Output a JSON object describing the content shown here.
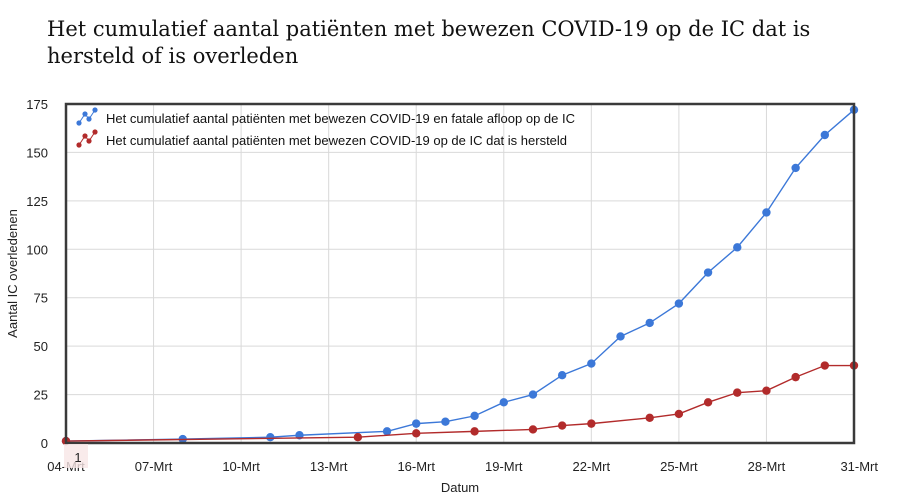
{
  "page": {
    "title": "Het cumulatief aantal patiënten met bewezen COVID-19 op de IC dat is hersteld of is overleden"
  },
  "chart_data": {
    "type": "line",
    "title": "",
    "xlabel": "Datum",
    "ylabel": "Aantal IC overledenen",
    "x_categories": [
      "04-Mrt",
      "05-Mrt",
      "06-Mrt",
      "07-Mrt",
      "08-Mrt",
      "09-Mrt",
      "10-Mrt",
      "11-Mrt",
      "12-Mrt",
      "13-Mrt",
      "14-Mrt",
      "15-Mrt",
      "16-Mrt",
      "17-Mrt",
      "18-Mrt",
      "19-Mrt",
      "20-Mrt",
      "21-Mrt",
      "22-Mrt",
      "23-Mrt",
      "24-Mrt",
      "25-Mrt",
      "26-Mrt",
      "27-Mrt",
      "28-Mrt",
      "29-Mrt",
      "30-Mrt",
      "31-Mrt"
    ],
    "x_tick_labels": [
      "04-Mrt",
      "07-Mrt",
      "10-Mrt",
      "13-Mrt",
      "16-Mrt",
      "19-Mrt",
      "22-Mrt",
      "25-Mrt",
      "28-Mrt",
      "31-Mrt"
    ],
    "ylim": [
      0,
      175
    ],
    "y_ticks": [
      0,
      25,
      50,
      75,
      100,
      125,
      150,
      175
    ],
    "grid": true,
    "legend_position": "top-left",
    "annotation": "1",
    "series": [
      {
        "name": "Het cumulatief aantal patiënten met bewezen COVID-19 en fatale afloop op de IC",
        "color": "#3c78d8",
        "points": [
          {
            "x": "04-Mrt",
            "y": 1
          },
          {
            "x": "08-Mrt",
            "y": 2
          },
          {
            "x": "11-Mrt",
            "y": 3
          },
          {
            "x": "12-Mrt",
            "y": 4
          },
          {
            "x": "15-Mrt",
            "y": 6
          },
          {
            "x": "16-Mrt",
            "y": 10
          },
          {
            "x": "17-Mrt",
            "y": 11
          },
          {
            "x": "18-Mrt",
            "y": 14
          },
          {
            "x": "19-Mrt",
            "y": 21
          },
          {
            "x": "20-Mrt",
            "y": 25
          },
          {
            "x": "21-Mrt",
            "y": 35
          },
          {
            "x": "22-Mrt",
            "y": 41
          },
          {
            "x": "23-Mrt",
            "y": 55
          },
          {
            "x": "24-Mrt",
            "y": 62
          },
          {
            "x": "25-Mrt",
            "y": 72
          },
          {
            "x": "26-Mrt",
            "y": 88
          },
          {
            "x": "27-Mrt",
            "y": 101
          },
          {
            "x": "28-Mrt",
            "y": 119
          },
          {
            "x": "29-Mrt",
            "y": 142
          },
          {
            "x": "30-Mrt",
            "y": 159
          },
          {
            "x": "31-Mrt",
            "y": 172
          }
        ]
      },
      {
        "name": "Het cumulatief aantal patiënten met bewezen COVID-19 op de IC dat is hersteld",
        "color": "#b22b2b",
        "points": [
          {
            "x": "04-Mrt",
            "y": 1
          },
          {
            "x": "14-Mrt",
            "y": 3
          },
          {
            "x": "16-Mrt",
            "y": 5
          },
          {
            "x": "18-Mrt",
            "y": 6
          },
          {
            "x": "20-Mrt",
            "y": 7
          },
          {
            "x": "21-Mrt",
            "y": 9
          },
          {
            "x": "22-Mrt",
            "y": 10
          },
          {
            "x": "24-Mrt",
            "y": 13
          },
          {
            "x": "25-Mrt",
            "y": 15
          },
          {
            "x": "26-Mrt",
            "y": 21
          },
          {
            "x": "27-Mrt",
            "y": 26
          },
          {
            "x": "28-Mrt",
            "y": 27
          },
          {
            "x": "29-Mrt",
            "y": 34
          },
          {
            "x": "30-Mrt",
            "y": 40
          },
          {
            "x": "31-Mrt",
            "y": 40
          }
        ]
      }
    ]
  }
}
